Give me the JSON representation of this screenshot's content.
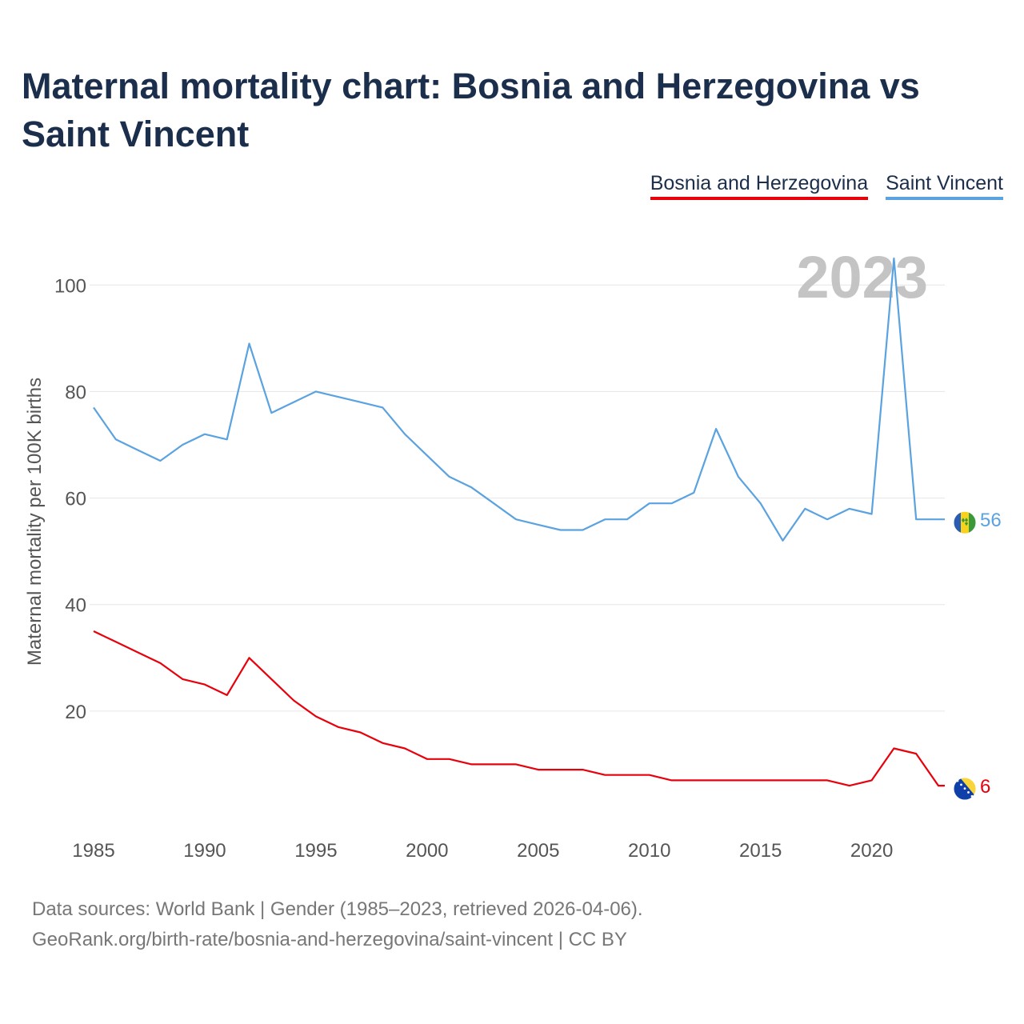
{
  "title": "Maternal mortality chart: Bosnia and Herzegovina vs Saint Vincent",
  "legend": {
    "bih": "Bosnia and Herzegovina",
    "vc": "Saint Vincent"
  },
  "footer": {
    "line1": "Data sources: World Bank | Gender (1985–2023, retrieved 2026-04-06).",
    "line2": "GeoRank.org/birth-rate/bosnia-and-herzegovina/saint-vincent | CC BY"
  },
  "colors": {
    "bih": "#e8000b",
    "vc": "#5aa2e0",
    "grid": "#e6e6e6",
    "axis_text": "#555555",
    "year_watermark": "#c4c4c4"
  },
  "chart_data": {
    "type": "line",
    "title": "Maternal mortality chart: Bosnia and Herzegovina vs Saint Vincent",
    "xlabel": "",
    "ylabel": "Maternal mortality per 100K births",
    "year_label": "2023",
    "xlim": [
      1985,
      2023
    ],
    "ylim": [
      0,
      105
    ],
    "xticks": [
      1985,
      1990,
      1995,
      2000,
      2005,
      2010,
      2015,
      2020
    ],
    "yticks": [
      20,
      40,
      60,
      80,
      100
    ],
    "grid": true,
    "x": [
      1985,
      1986,
      1987,
      1988,
      1989,
      1990,
      1991,
      1992,
      1993,
      1994,
      1995,
      1996,
      1997,
      1998,
      1999,
      2000,
      2001,
      2002,
      2003,
      2004,
      2005,
      2006,
      2007,
      2008,
      2009,
      2010,
      2011,
      2012,
      2013,
      2014,
      2015,
      2016,
      2017,
      2018,
      2019,
      2020,
      2021,
      2022,
      2023
    ],
    "series": [
      {
        "name": "Saint Vincent",
        "key": "vc",
        "end_label": "56",
        "values": [
          77,
          71,
          69,
          67,
          70,
          72,
          71,
          89,
          76,
          78,
          80,
          79,
          78,
          77,
          72,
          68,
          64,
          62,
          59,
          56,
          55,
          54,
          54,
          56,
          56,
          59,
          59,
          61,
          73,
          64,
          59,
          52,
          58,
          56,
          58,
          57,
          105,
          56,
          56
        ]
      },
      {
        "name": "Bosnia and Herzegovina",
        "key": "bih",
        "end_label": "6",
        "values": [
          35,
          33,
          31,
          29,
          26,
          25,
          23,
          30,
          26,
          22,
          19,
          17,
          16,
          14,
          13,
          11,
          11,
          10,
          10,
          10,
          9,
          9,
          9,
          8,
          8,
          8,
          7,
          7,
          7,
          7,
          7,
          7,
          7,
          7,
          6,
          7,
          13,
          12,
          6
        ]
      }
    ]
  }
}
